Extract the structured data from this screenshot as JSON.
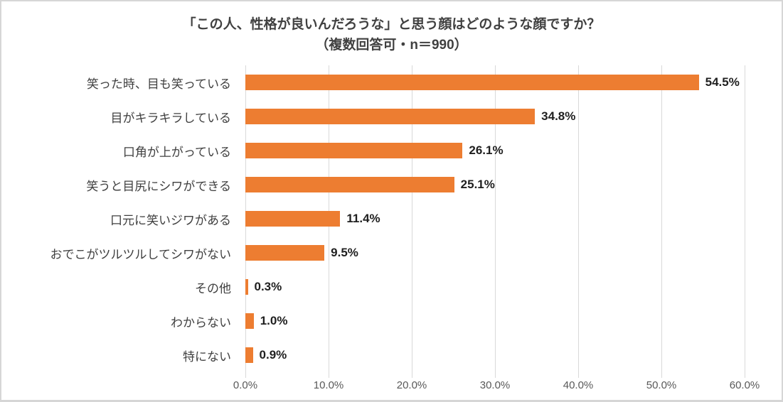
{
  "chart_data": {
    "type": "bar",
    "orientation": "horizontal",
    "title_line1": "「この人、性格が良いんだろうな」と思う顔はどのような顔ですか？",
    "title_line2": "（複数回答可・n＝990）",
    "categories": [
      "笑った時、目も笑っている",
      "目がキラキラしている",
      "口角が上がっている",
      "笑うと目尻にシワができる",
      "口元に笑いジワがある",
      "おでこがツルツルしてシワがない",
      "その他",
      "わからない",
      "特にない"
    ],
    "values": [
      54.5,
      34.8,
      26.1,
      25.1,
      11.4,
      9.5,
      0.3,
      1.0,
      0.9
    ],
    "value_labels": [
      "54.5%",
      "34.8%",
      "26.1%",
      "25.1%",
      "11.4%",
      "9.5%",
      "0.3%",
      "1.0%",
      "0.9%"
    ],
    "x_tick_labels": [
      "0.0%",
      "10.0%",
      "20.0%",
      "30.0%",
      "40.0%",
      "50.0%",
      "60.0%"
    ],
    "xlim": [
      0,
      60
    ],
    "xlabel": "",
    "ylabel": "",
    "grid": "vertical",
    "legend_position": "none",
    "bar_color": "#ED7D31",
    "gridline_color": "#D9D9D9",
    "title_color": "#404040",
    "label_color": "#404040",
    "value_label_color": "#1F1F1F",
    "axis_label_color": "#595959"
  }
}
